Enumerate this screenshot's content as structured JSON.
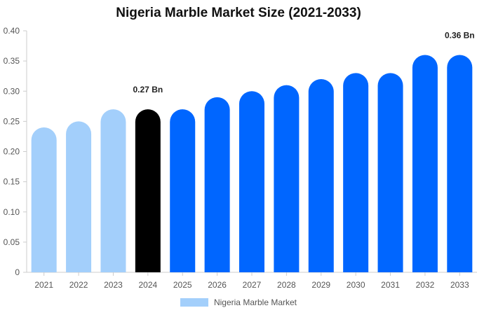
{
  "chart_data": {
    "type": "bar",
    "title": "Nigeria Marble Market Size (2021-2033)",
    "xlabel": "",
    "ylabel": "",
    "categories": [
      "2021",
      "2022",
      "2023",
      "2024",
      "2025",
      "2026",
      "2027",
      "2028",
      "2029",
      "2030",
      "2031",
      "2032",
      "2033"
    ],
    "series": [
      {
        "name": "Nigeria Marble Market",
        "values": [
          0.24,
          0.25,
          0.27,
          0.27,
          0.27,
          0.29,
          0.3,
          0.31,
          0.32,
          0.33,
          0.33,
          0.36,
          0.36
        ]
      }
    ],
    "ylim": [
      0,
      0.4
    ],
    "yticks": [
      "0",
      "0.05",
      "0.10",
      "0.15",
      "0.20",
      "0.25",
      "0.30",
      "0.35",
      "0.40"
    ],
    "ytick_values": [
      0,
      0.05,
      0.1,
      0.15,
      0.2,
      0.25,
      0.3,
      0.35,
      0.4
    ],
    "data_labels": [
      {
        "category": "2024",
        "text": "0.27 Bn"
      },
      {
        "category": "2033",
        "text": "0.36 Bn"
      }
    ],
    "bar_colors": [
      "#a3cffb",
      "#a3cffb",
      "#a3cffb",
      "#000000",
      "#0066ff",
      "#0066ff",
      "#0066ff",
      "#0066ff",
      "#0066ff",
      "#0066ff",
      "#0066ff",
      "#0066ff",
      "#0066ff"
    ],
    "legend": {
      "position": "bottom",
      "swatch_color": "#a3cffb"
    },
    "grid": false
  }
}
